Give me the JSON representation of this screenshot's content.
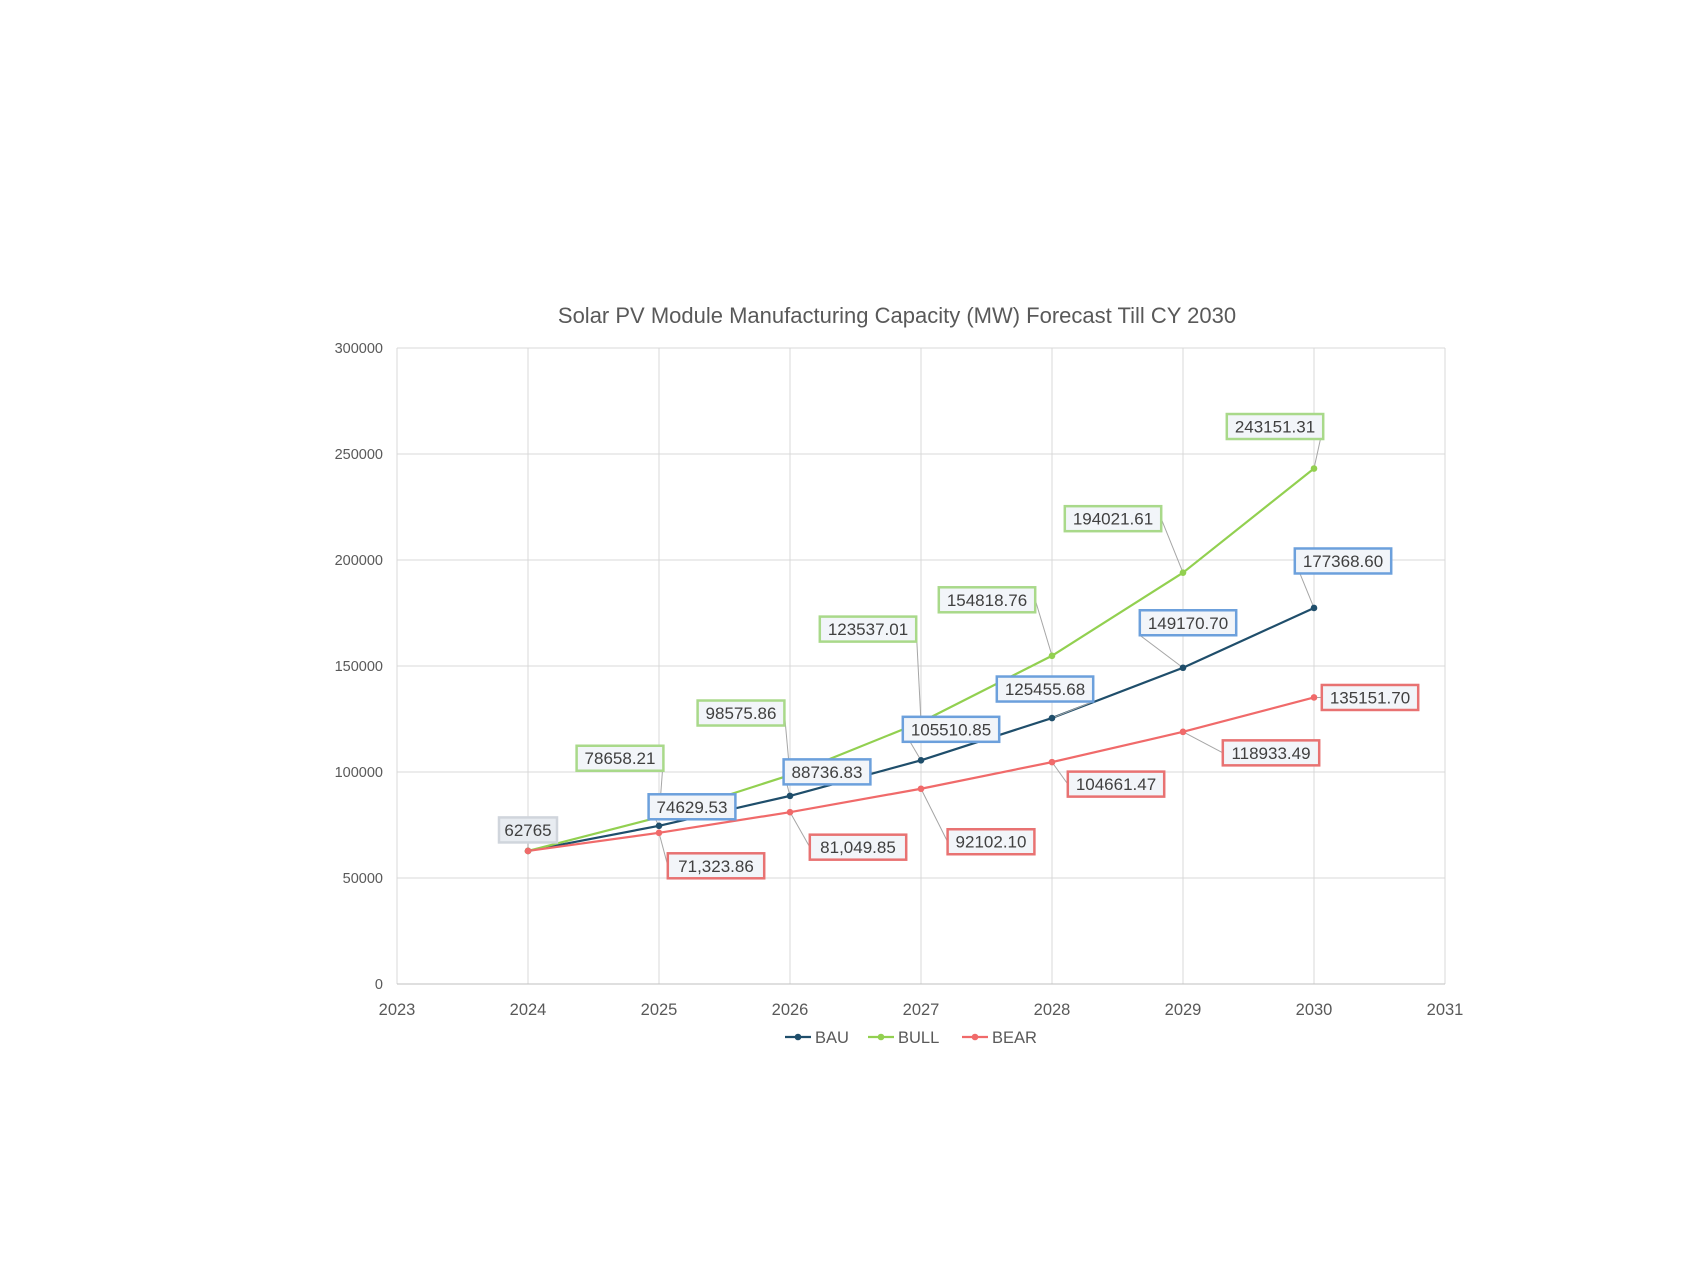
{
  "chart_data": {
    "type": "scatter",
    "title": "Solar PV Module Manufacturing Capacity (MW) Forecast Till CY 2030",
    "xlabel": "",
    "ylabel": "",
    "xlim": [
      2023,
      2031
    ],
    "ylim": [
      0,
      300000
    ],
    "x_ticks": [
      "2023",
      "2024",
      "2025",
      "2026",
      "2027",
      "2028",
      "2029",
      "2030",
      "2031"
    ],
    "y_ticks": [
      "0",
      "50000",
      "100000",
      "150000",
      "200000",
      "250000",
      "300000"
    ],
    "grid": true,
    "legend_position": "bottom",
    "x": [
      2024,
      2025,
      2026,
      2027,
      2028,
      2029,
      2030
    ],
    "series": [
      {
        "name": "BAU",
        "color": "#1f4e6b",
        "label_border": "#6ca0dc",
        "values": [
          62765,
          74629.53,
          88736.83,
          105510.85,
          125455.68,
          149170.7,
          177368.6
        ],
        "labels": [
          "",
          "74629.53",
          "88736.83",
          "105510.85",
          "125455.68",
          "149170.70",
          "177368.60"
        ]
      },
      {
        "name": "BULL",
        "color": "#92d050",
        "label_border": "#a9d98a",
        "values": [
          62765,
          78658.21,
          98575.86,
          123537.01,
          154818.76,
          194021.61,
          243151.31
        ],
        "labels": [
          "",
          "78658.21",
          "98575.86",
          "123537.01",
          "154818.76",
          "194021.61",
          "243151.31"
        ]
      },
      {
        "name": "BEAR",
        "color": "#f06a6a",
        "label_border": "#e87272",
        "values": [
          62765,
          71323.86,
          81049.85,
          92102.1,
          104661.47,
          118933.49,
          135151.7
        ],
        "labels": [
          "62765",
          "71,323.86",
          "81,049.85",
          "92102.10",
          "104661.47",
          "118933.49",
          "135151.70"
        ]
      }
    ]
  }
}
